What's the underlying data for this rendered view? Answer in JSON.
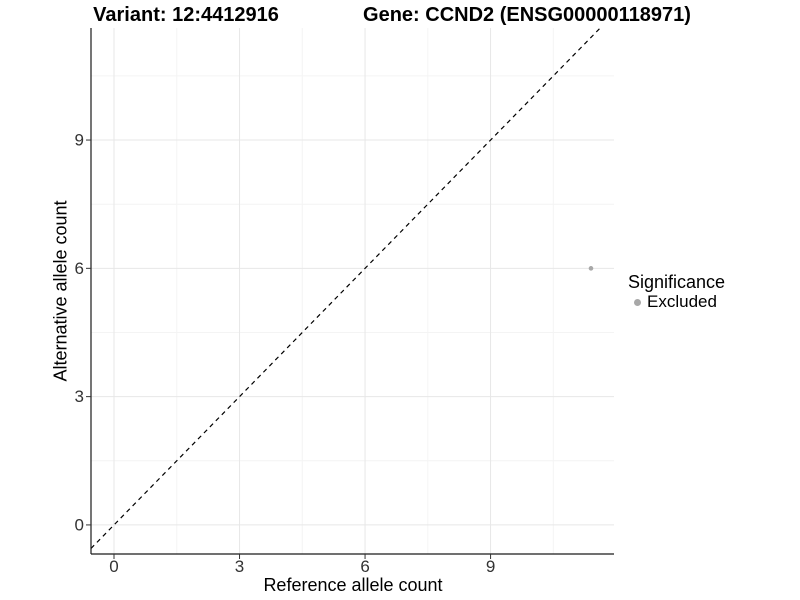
{
  "header": {
    "variant_title": "Variant: 12:4412916",
    "gene_title": "Gene: CCND2 (ENSG00000118971)"
  },
  "legend": {
    "title": "Significance",
    "items": [
      {
        "label": "Excluded",
        "color": "#a8a8a8"
      }
    ]
  },
  "chart_data": {
    "type": "scatter",
    "title": "Variant: 12:4412916    Gene: CCND2 (ENSG00000118971)",
    "xlabel": "Reference allele count",
    "ylabel": "Alternative allele count",
    "xlim": [
      -0.55,
      11.95
    ],
    "ylim": [
      -0.68,
      11.62
    ],
    "x_ticks": [
      0,
      3,
      6,
      9
    ],
    "y_ticks": [
      0,
      3,
      6,
      9
    ],
    "x_minor_ticks": [
      1.5,
      4.5,
      7.5,
      10.5
    ],
    "y_minor_ticks": [
      1.5,
      4.5,
      7.5,
      10.5
    ],
    "grid": true,
    "legend_position": "right",
    "series": [
      {
        "name": "Excluded",
        "color": "#a8a8a8",
        "points": [
          {
            "x": 11.4,
            "y": 6
          }
        ]
      }
    ],
    "reference_line": {
      "equation": "y = x",
      "style": "dashed",
      "color": "#000000"
    },
    "colors": {
      "background": "#ffffff",
      "grid_major": "#e7e7e7",
      "grid_minor": "#f4f4f4",
      "axis_line": "#1a1a1a",
      "tick_mark": "#333333",
      "tick_label": "#333333",
      "point": "#a8a8a8"
    }
  }
}
